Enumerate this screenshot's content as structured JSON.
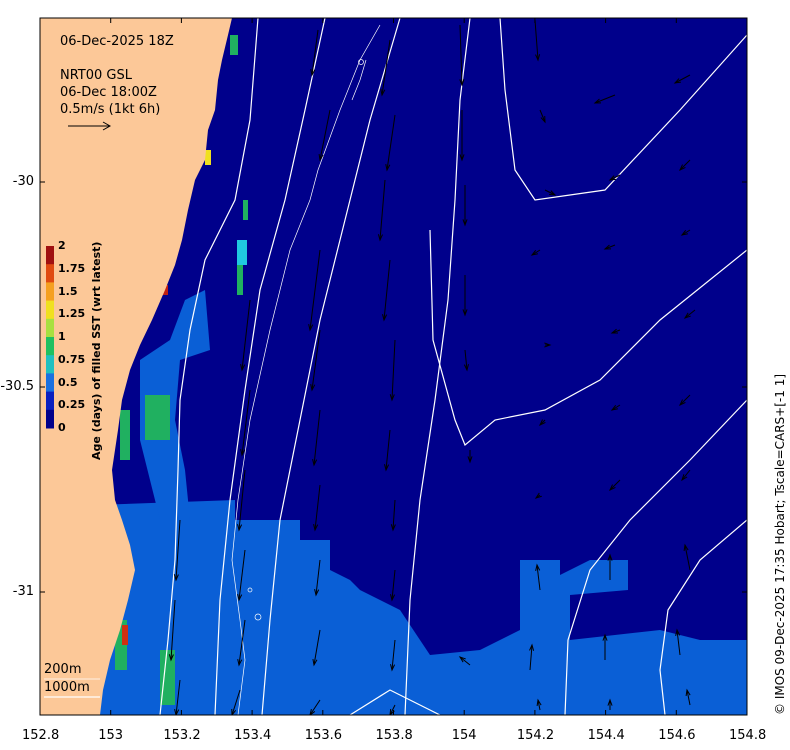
{
  "map": {
    "date_label": "06-Dec-2025 18Z",
    "product_label": "NRT00 GSL",
    "time_label": "06-Dec 18:00Z",
    "scale_label": "0.5m/s (1kt 6h)",
    "depth_labels": [
      "200m",
      "1000m"
    ],
    "x_ticks": [
      "152.8",
      "153",
      "153.2",
      "153.4",
      "153.6",
      "153.8",
      "154",
      "154.2",
      "154.4",
      "154.6",
      "154.8"
    ],
    "y_ticks": [
      "-30",
      "-30.5",
      "-31"
    ],
    "x_range": [
      152.8,
      154.8
    ],
    "y_range": [
      -31.3,
      -29.6
    ],
    "credit": "© IMOS 09-Dec-2025 17:35 Hobart; Tscale=CARS+[-1 1]",
    "colorbar": {
      "title": "Age (days) of filled SST (wrt latest)",
      "ticks": [
        "2",
        "1.75",
        "1.5",
        "1.25",
        "1",
        "0.75",
        "0.5",
        "0.25",
        "0"
      ],
      "colors": [
        "#a01010",
        "#e04a10",
        "#f5a020",
        "#f0e020",
        "#a8e040",
        "#20c060",
        "#20c0c0",
        "#1a70e0",
        "#0a20c0",
        "#00008b"
      ]
    },
    "colors": {
      "land": "#fcc898",
      "ocean_old": "#00008b",
      "ocean_mid": "#0a5fd6",
      "contour": "#ffffff"
    }
  }
}
